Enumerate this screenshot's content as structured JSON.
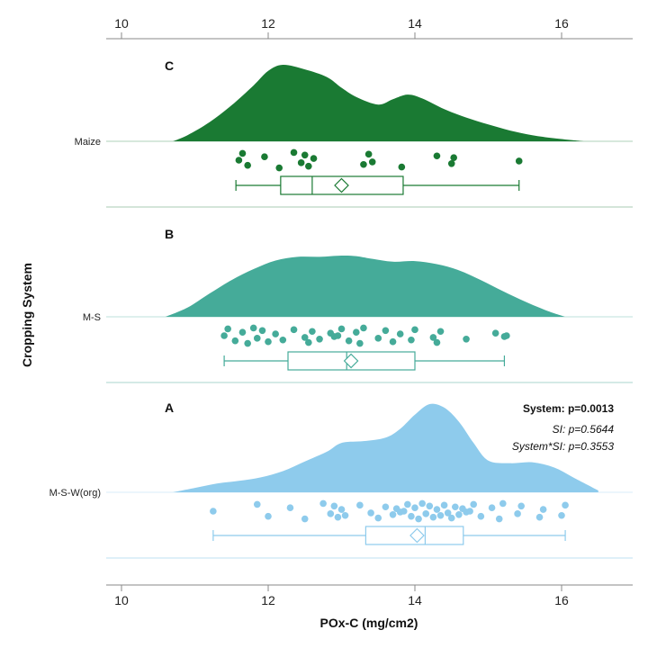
{
  "chart_data": {
    "type": "raincloud",
    "xlabel": "POx-C (mg/cm2)",
    "ylabel": "Cropping System",
    "xlim": [
      9.6,
      17.0
    ],
    "xticks": [
      10,
      12,
      14,
      16
    ],
    "xtick_labels": [
      "10",
      "12",
      "14",
      "16"
    ],
    "groups": [
      {
        "name": "Maize",
        "letter": "C",
        "color": "#1a7a33",
        "density": {
          "x": [
            10.7,
            10.9,
            11.2,
            11.5,
            11.8,
            12.0,
            12.2,
            12.5,
            12.8,
            13.0,
            13.2,
            13.5,
            13.7,
            13.9,
            14.1,
            14.4,
            14.7,
            15.0,
            15.3,
            15.6,
            15.9,
            16.3
          ],
          "y": [
            0.0,
            0.08,
            0.25,
            0.47,
            0.73,
            0.92,
            1.0,
            0.94,
            0.84,
            0.7,
            0.58,
            0.48,
            0.55,
            0.61,
            0.56,
            0.42,
            0.31,
            0.22,
            0.14,
            0.08,
            0.04,
            0.0
          ]
        },
        "points": [
          11.6,
          11.65,
          11.72,
          11.95,
          12.15,
          12.35,
          12.45,
          12.5,
          12.55,
          12.62,
          13.3,
          13.37,
          13.42,
          13.82,
          14.3,
          14.5,
          14.53,
          15.42
        ],
        "box": {
          "whisker_low": 11.56,
          "q1": 12.17,
          "median": 12.6,
          "mean": 13.0,
          "q3": 13.84,
          "whisker_high": 15.42
        }
      },
      {
        "name": "M-S",
        "letter": "B",
        "color": "#45ab99",
        "density": {
          "x": [
            10.6,
            10.9,
            11.2,
            11.5,
            11.8,
            12.1,
            12.4,
            12.7,
            13.0,
            13.2,
            13.4,
            13.7,
            14.0,
            14.3,
            14.6,
            14.9,
            15.2,
            15.5,
            15.8,
            16.05
          ],
          "y": [
            0.0,
            0.15,
            0.38,
            0.6,
            0.78,
            0.92,
            0.98,
            0.98,
            1.0,
            0.99,
            0.95,
            0.9,
            0.91,
            0.86,
            0.76,
            0.6,
            0.42,
            0.25,
            0.1,
            0.0
          ]
        },
        "points": [
          11.4,
          11.45,
          11.55,
          11.65,
          11.72,
          11.8,
          11.85,
          11.92,
          12.0,
          12.1,
          12.2,
          12.35,
          12.5,
          12.55,
          12.6,
          12.7,
          12.85,
          12.9,
          12.95,
          13.0,
          13.1,
          13.2,
          13.25,
          13.3,
          13.5,
          13.6,
          13.7,
          13.8,
          13.95,
          14.0,
          14.25,
          14.3,
          14.35,
          14.7,
          15.1,
          15.22,
          15.25
        ],
        "box": {
          "whisker_low": 11.4,
          "q1": 12.27,
          "median": 13.07,
          "mean": 13.13,
          "q3": 14.0,
          "whisker_high": 15.22
        }
      },
      {
        "name": "M-S-W(org)",
        "letter": "A",
        "color": "#8ecbec",
        "density": {
          "x": [
            10.7,
            11.0,
            11.3,
            11.6,
            11.9,
            12.2,
            12.5,
            12.8,
            13.0,
            13.3,
            13.6,
            13.8,
            14.0,
            14.2,
            14.4,
            14.6,
            14.8,
            15.0,
            15.3,
            15.6,
            15.9,
            16.2,
            16.5
          ],
          "y": [
            0.0,
            0.05,
            0.1,
            0.13,
            0.17,
            0.24,
            0.35,
            0.46,
            0.56,
            0.58,
            0.62,
            0.72,
            0.88,
            1.0,
            0.96,
            0.8,
            0.56,
            0.36,
            0.33,
            0.34,
            0.28,
            0.15,
            0.02
          ]
        },
        "points": [
          11.25,
          11.85,
          12.0,
          12.3,
          12.5,
          12.75,
          12.85,
          12.9,
          12.95,
          13.0,
          13.05,
          13.25,
          13.4,
          13.5,
          13.6,
          13.7,
          13.75,
          13.8,
          13.85,
          13.9,
          13.95,
          14.0,
          14.05,
          14.1,
          14.15,
          14.2,
          14.25,
          14.3,
          14.35,
          14.4,
          14.45,
          14.5,
          14.55,
          14.6,
          14.65,
          14.7,
          14.75,
          14.8,
          14.9,
          15.05,
          15.15,
          15.2,
          15.4,
          15.45,
          15.7,
          15.75,
          16.0,
          16.05
        ],
        "box": {
          "whisker_low": 11.25,
          "q1": 13.33,
          "median": 14.14,
          "mean": 14.03,
          "q3": 14.66,
          "whisker_high": 16.05
        }
      }
    ],
    "annotations": [
      {
        "text": "System: p=0.0013",
        "style": "bold"
      },
      {
        "text": "SI: p=0.5644",
        "style": "italic"
      },
      {
        "text": "System*SI: p=0.3553",
        "style": "italic"
      }
    ]
  }
}
